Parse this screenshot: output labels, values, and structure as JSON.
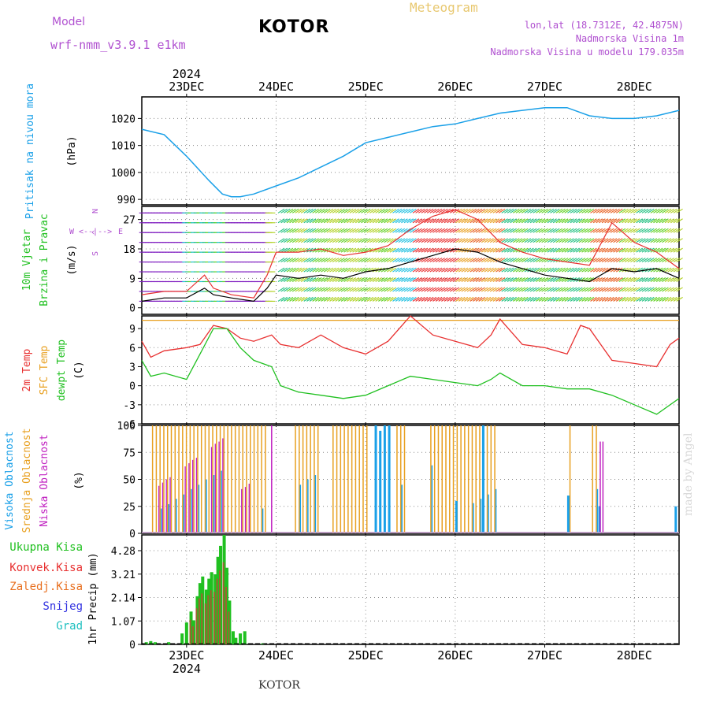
{
  "header": {
    "model_label": "Model",
    "model_name": "wrf-nmm_v3.9.1  e1km",
    "title": "KOTOR",
    "meteogram_label": "Meteogram",
    "lonlat": "lon,lat (18.7312E, 42.4875N)",
    "altitude": "Nadmorska Visina 1m",
    "model_altitude": "Nadmorska Visina u modelu 179.035m",
    "footer": "KOTOR",
    "watermark": "made by Angel"
  },
  "colors": {
    "pressure": "#1aa0e8",
    "wind_gust": "#e83030",
    "wind_speed": "#000000",
    "temp2m": "#e83030",
    "sfc_temp": "#e8a020",
    "dewpoint": "#20c020",
    "cloud_high": "#1aa0e8",
    "cloud_mid": "#e8a020",
    "cloud_low": "#c020c0",
    "precip_total": "#20c020",
    "precip_conv": "#e83030",
    "precip_frozen": "#e87020",
    "snow": "#3030e0",
    "grad": "#20c0c0",
    "grid": "#888888"
  },
  "chart_data": [
    {
      "panel": "pressure",
      "type": "line",
      "ylabel_1": "Pritisak na nivou mora",
      "ylabel_2": "(hPa)",
      "yticks": [
        "990",
        "1000",
        "1010",
        "1020"
      ],
      "ylim": [
        988,
        1028
      ],
      "x_day_labels": [
        "23DEC",
        "24DEC",
        "25DEC",
        "26DEC",
        "27DEC",
        "28DEC"
      ],
      "x_year": "2024",
      "xlim_days": [
        22.5,
        28.5
      ],
      "series": [
        {
          "x": [
            22.5,
            22.75,
            23.0,
            23.25,
            23.4,
            23.5,
            23.6,
            23.75,
            24.0,
            24.25,
            24.5,
            24.75,
            25.0,
            25.25,
            25.5,
            25.75,
            26.0,
            26.25,
            26.5,
            26.75,
            27.0,
            27.25,
            27.5,
            27.75,
            28.0,
            28.25,
            28.5
          ],
          "y": [
            1016,
            1014,
            1006,
            997,
            992,
            991,
            991,
            992,
            995,
            998,
            1002,
            1006,
            1011,
            1013,
            1015,
            1017,
            1018,
            1020,
            1022,
            1023,
            1024,
            1024,
            1021,
            1020,
            1020,
            1021,
            1023
          ]
        }
      ]
    },
    {
      "panel": "wind",
      "type": "line",
      "ylabel_1": "10m Vjetar",
      "ylabel_2": "Brzina i Pravac",
      "ylabel_3": "(m/s)",
      "dir_legend": [
        "W",
        "<--|-->",
        "E",
        "N",
        "^",
        "S"
      ],
      "yticks": [
        "0",
        "9",
        "18",
        "27"
      ],
      "ylim": [
        -2,
        31
      ],
      "series": [
        {
          "name": "speed",
          "x": [
            22.5,
            22.75,
            23.0,
            23.2,
            23.3,
            23.5,
            23.75,
            23.9,
            24.0,
            24.25,
            24.5,
            24.75,
            25.0,
            25.25,
            25.5,
            25.75,
            26.0,
            26.25,
            26.5,
            26.75,
            27.0,
            27.25,
            27.5,
            27.75,
            28.0,
            28.25,
            28.5
          ],
          "y": [
            2,
            3,
            3,
            6,
            4,
            3,
            2,
            6,
            10,
            9,
            10,
            9,
            11,
            12,
            14,
            16,
            18,
            17,
            14,
            12,
            10,
            9,
            8,
            12,
            11,
            12,
            9
          ]
        },
        {
          "name": "gust",
          "x": [
            22.5,
            22.75,
            23.0,
            23.2,
            23.3,
            23.5,
            23.75,
            23.9,
            24.0,
            24.25,
            24.5,
            24.75,
            25.0,
            25.25,
            25.5,
            25.75,
            26.0,
            26.25,
            26.5,
            26.75,
            27.0,
            27.25,
            27.5,
            27.75,
            28.0,
            28.25,
            28.5
          ],
          "y": [
            4,
            5,
            5,
            10,
            6,
            4,
            3,
            10,
            17,
            17,
            18,
            16,
            17,
            19,
            24,
            28,
            30,
            27,
            20,
            17,
            15,
            14,
            13,
            26,
            20,
            17,
            12
          ]
        }
      ]
    },
    {
      "panel": "temperature",
      "type": "line",
      "ylabel_1": "2m Temp",
      "ylabel_2": "SFC Temp",
      "ylabel_3": "dewpt Temp",
      "ylabel_4": "(C)",
      "yticks": [
        "-6",
        "-3",
        "0",
        "3",
        "6",
        "9"
      ],
      "ylim": [
        -6,
        11
      ],
      "series": [
        {
          "name": "2m Temp",
          "x": [
            22.5,
            22.6,
            22.75,
            23.0,
            23.15,
            23.3,
            23.45,
            23.6,
            23.75,
            23.95,
            24.05,
            24.25,
            24.5,
            24.75,
            25.0,
            25.25,
            25.5,
            25.75,
            26.0,
            26.25,
            26.4,
            26.5,
            26.75,
            27.0,
            27.25,
            27.4,
            27.5,
            27.75,
            28.0,
            28.25,
            28.4,
            28.5
          ],
          "y": [
            7,
            4.5,
            5.5,
            6,
            6.5,
            9.5,
            9,
            7.5,
            7,
            8,
            6.5,
            6,
            8,
            6,
            5,
            7,
            11,
            8,
            7,
            6,
            8,
            10.5,
            6.5,
            6,
            5,
            9.5,
            9,
            4,
            3.5,
            3,
            6.5,
            7.5
          ]
        },
        {
          "name": "SFC Temp",
          "x": [
            22.5,
            28.5
          ],
          "y": [
            10.3,
            10.3
          ]
        },
        {
          "name": "dewpt Temp",
          "x": [
            22.5,
            22.6,
            22.75,
            23.0,
            23.15,
            23.3,
            23.45,
            23.6,
            23.75,
            23.95,
            24.05,
            24.25,
            24.5,
            24.75,
            25.0,
            25.25,
            25.5,
            25.75,
            26.0,
            26.25,
            26.4,
            26.5,
            26.75,
            27.0,
            27.25,
            27.5,
            27.75,
            28.0,
            28.25,
            28.5
          ],
          "y": [
            4,
            1.5,
            2,
            1,
            5,
            9,
            9,
            6,
            4,
            3,
            0,
            -1,
            -1.5,
            -2,
            -1.5,
            0,
            1.5,
            1,
            0.5,
            0,
            1,
            2,
            0,
            0,
            -0.5,
            -0.5,
            -1.5,
            -3,
            -4.5,
            -2
          ]
        }
      ]
    },
    {
      "panel": "cloud",
      "type": "bar",
      "ylabel_1": "Visoka Oblacnost",
      "ylabel_2": "Srednja Oblacnost",
      "ylabel_3": "Niska Oblacnost",
      "ylabel_4": "(%)",
      "yticks": [
        "0",
        "25",
        "50",
        "75",
        "100"
      ],
      "ylim": [
        0,
        100
      ]
    },
    {
      "panel": "precip",
      "type": "bar",
      "legend": [
        "Ukupna Kisa",
        "Konvek.Kisa",
        "Zaledj.Kisa",
        "Snijeg",
        "Grad"
      ],
      "ylabel": "1hr Precip (mm)",
      "yticks": [
        "0",
        "1.07",
        "2.14",
        "3.21",
        "4.28"
      ],
      "ylim": [
        0,
        5.0
      ],
      "x": [
        22.55,
        22.6,
        22.65,
        22.8,
        22.95,
        23.0,
        23.05,
        23.08,
        23.12,
        23.15,
        23.18,
        23.22,
        23.25,
        23.28,
        23.32,
        23.35,
        23.38,
        23.42,
        23.45,
        23.48,
        23.52,
        23.55,
        23.6,
        23.65,
        23.85
      ],
      "values": [
        0.1,
        0.15,
        0.1,
        0.1,
        0.5,
        1.0,
        1.5,
        1.1,
        2.2,
        2.8,
        3.1,
        2.5,
        3.0,
        3.3,
        3.2,
        4.0,
        4.5,
        5.0,
        3.5,
        2.0,
        0.6,
        0.3,
        0.5,
        0.6,
        0.05
      ]
    }
  ]
}
